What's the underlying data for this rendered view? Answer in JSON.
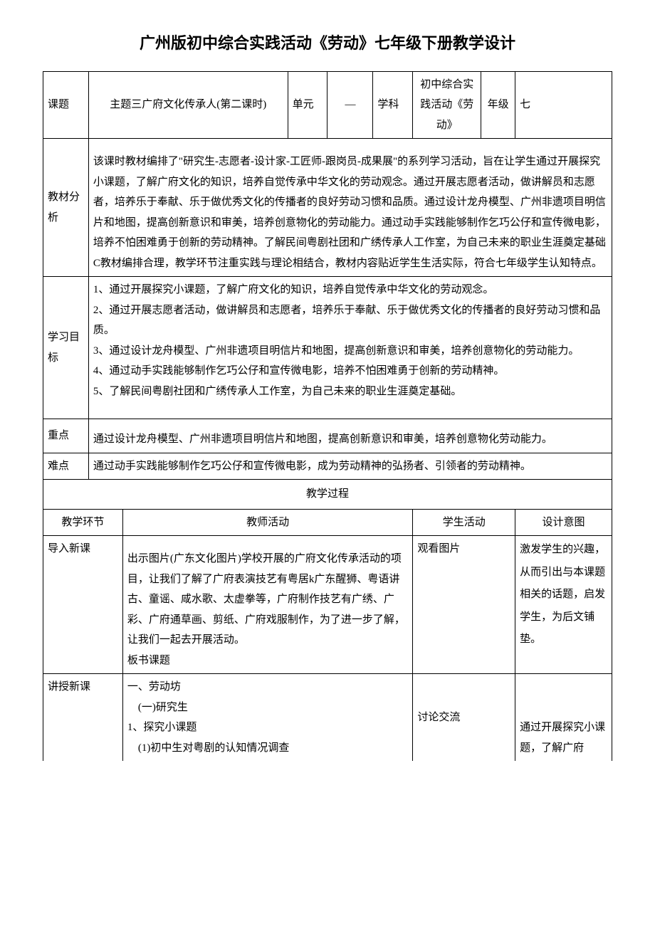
{
  "title": "广州版初中综合实践活动《劳动》七年级下册教学设计",
  "header": {
    "topic_label": "课题",
    "topic_value": "主题三广府文化传承人(第二课时)",
    "unit_label": "单元",
    "unit_value": "—",
    "subject_label": "学科",
    "subject_value": "初中综合实践活动《劳动》",
    "grade_label": "年级",
    "grade_value": "七"
  },
  "analysis": {
    "label": "教材分析",
    "text": "该课时教材编排了\"研究生-志愿者-设计家-工匠师-跟岗员-成果展\"的系列学习活动，旨在让学生通过开展探究小课题，了解广府文化的知识，培养自觉传承中华文化的劳动观念。通过开展志愿者活动，做讲解员和志愿者，培养乐于奉献、乐于做优秀文化的传播者的良好劳动习惯和品质。通过设计龙舟模型、广州非遗项目明信片和地图，提高创新意识和审美，培养创意物化的劳动能力。通过动手实践能够制作乞巧公仔和宣传微电影，培养不怕困难勇于创新的劳动精神。了解民间粤剧社团和广绣传承人工作室，为自己未来的职业生涯奠定基础C教材编排合理，教学环节注重实践与理论相结合，教材内容贴近学生生活实际，符合七年级学生认知特点。"
  },
  "objectives": {
    "label": "学习目标",
    "items": [
      "1、通过开展探究小课题，了解广府文化的知识，培养自觉传承中华文化的劳动观念。",
      "2、通过开展志愿者活动，做讲解员和志愿者，培养乐于奉献、乐于做优秀文化的传播者的良好劳动习惯和品质。",
      "3、通过设计龙舟模型、广州非遗项目明信片和地图，提高创新意识和审美，培养创意物化的劳动能力。",
      "4、通过动手实践能够制作乞巧公仔和宣传微电影，培养不怕困难勇于创新的劳动精神。",
      "5、了解民间粤剧社团和广绣传承人工作室，为自己未来的职业生涯奠定基础。"
    ]
  },
  "keypoint": {
    "label": "重点",
    "text": "通过设计龙舟模型、广州非遗项目明信片和地图，提高创新意识和审美，培养创意物化劳动能力。"
  },
  "difficulty": {
    "label": "难点",
    "text": "通过动手实践能够制作乞巧公仔和宣传微电影，成为劳动精神的弘扬者、引领者的劳动精神。"
  },
  "process": {
    "title": "教学过程",
    "headers": {
      "phase": "教学环节",
      "teacher": "教师活动",
      "student": "学生活动",
      "intent": "设计意图"
    },
    "rows": [
      {
        "phase": "导入新课",
        "teacher": "出示图片(广东文化图片)学校开展的广府文化传承活动的项目，让我们了解了广府表演技艺有粤居k广东醒狮、粤语讲古、童谣、咸水歌、太虚拳等，广府制作技艺有广绣、广彩、广府通草画、剪纸、广府戏服制作，为了进一步了解，让我们一起去开展活动。\n板书课题",
        "student": "观看图片",
        "intent": "激发学生的兴趣，从而引出与本课题相关的话题，启发学生，为后文铺垫。"
      },
      {
        "phase": "讲授新课",
        "teacher": "一、劳动坊\n　(一)研究生\n1、探究小课题\n　(1)初中生对粤剧的认知情况调查",
        "student": "讨论交流",
        "intent": "通过开展探究小课题，了解广府"
      }
    ]
  }
}
